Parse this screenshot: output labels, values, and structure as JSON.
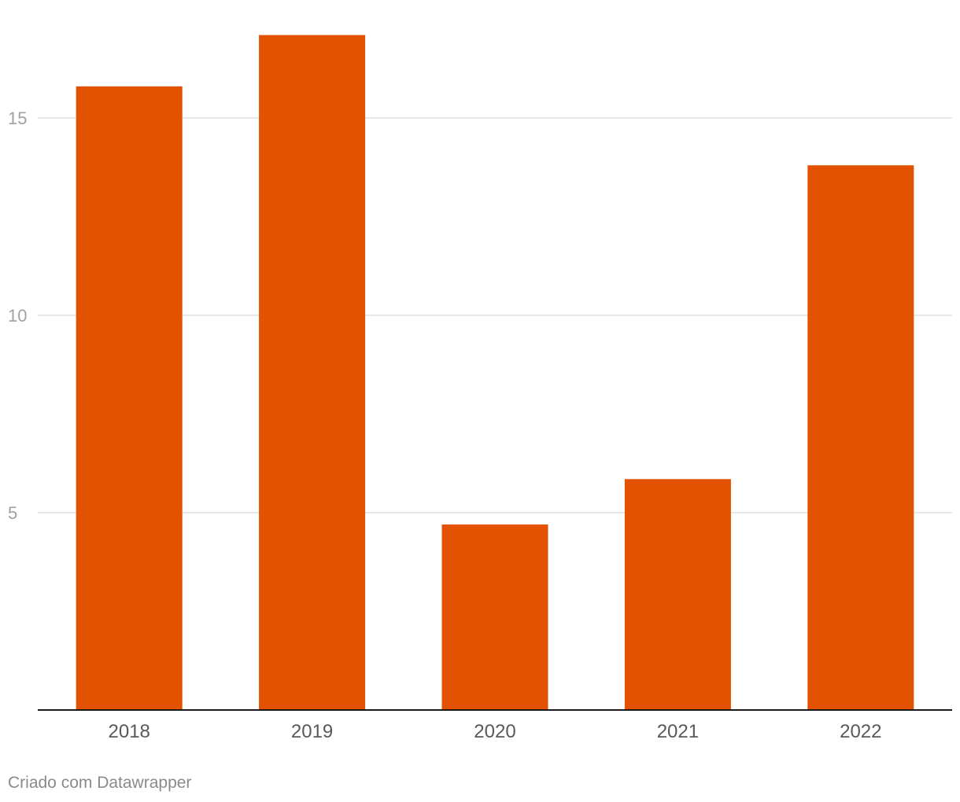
{
  "chart_data": {
    "type": "bar",
    "categories": [
      "2018",
      "2019",
      "2020",
      "2021",
      "2022"
    ],
    "values": [
      15.8,
      17.1,
      4.7,
      5.85,
      13.8
    ],
    "ylim": [
      0,
      17.1
    ],
    "yticks": [
      5,
      10,
      15
    ],
    "grid": true,
    "bar_color": "#e35200"
  },
  "footer": {
    "credit": "Criado com Datawrapper"
  }
}
